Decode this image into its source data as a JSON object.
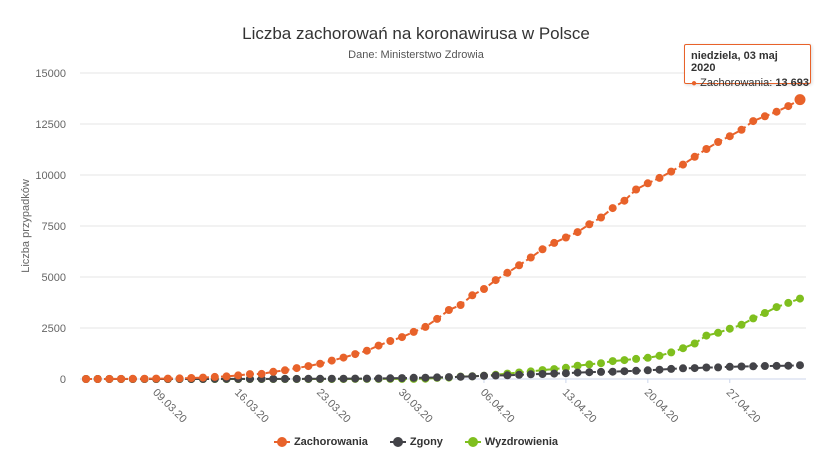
{
  "chart_data": {
    "type": "line",
    "title": "Liczba zachorowań na koronawirusa w Polsce",
    "subtitle": "Dane: Ministerstwo Zdrowia",
    "xlabel": "",
    "ylabel": "Liczba przypadków",
    "ylim": [
      0,
      15000
    ],
    "yticks": [
      "0",
      "2500",
      "5000",
      "7500",
      "10000",
      "12500",
      "15000"
    ],
    "ytick_values": [
      0,
      2500,
      5000,
      7500,
      10000,
      12500,
      15000
    ],
    "xticks": [
      "09.03.20",
      "16.03.20",
      "23.03.20",
      "30.03.20",
      "06.04.20",
      "13.04.20",
      "20.04.20",
      "27.04.20"
    ],
    "xtick_day_index": [
      6,
      13,
      20,
      27,
      34,
      41,
      48,
      55
    ],
    "x_start": "2020-03-03",
    "x_end": "2020-05-03",
    "grid": true,
    "legend_position": "bottom",
    "series": [
      {
        "name": "Zachorowania",
        "color": "#e8622a",
        "values": [
          1,
          1,
          5,
          6,
          11,
          17,
          18,
          22,
          31,
          49,
          68,
          104,
          125,
          177,
          238,
          251,
          355,
          425,
          536,
          634,
          749,
          901,
          1051,
          1221,
          1389,
          1638,
          1862,
          2055,
          2311,
          2554,
          2946,
          3383,
          3627,
          4102,
          4413,
          4848,
          5205,
          5575,
          5955,
          6356,
          6674,
          6934,
          7202,
          7582,
          7918,
          8379,
          8742,
          9287,
          9593,
          9856,
          10169,
          10511,
          10892,
          11273,
          11617,
          11902,
          12218,
          12640,
          12877,
          13105,
          13375,
          13693
        ]
      },
      {
        "name": "Zgony",
        "color": "#434348",
        "values": [
          0,
          0,
          0,
          0,
          0,
          0,
          0,
          0,
          0,
          1,
          2,
          3,
          3,
          5,
          5,
          5,
          5,
          7,
          7,
          8,
          10,
          14,
          16,
          18,
          22,
          23,
          33,
          45,
          57,
          65,
          79,
          94,
          107,
          129,
          159,
          174,
          181,
          208,
          232,
          245,
          263,
          286,
          314,
          332,
          347,
          360,
          380,
          401,
          426,
          454,
          494,
          524,
          535,
          562,
          570,
          596,
          612,
          624,
          636,
          644,
          651,
          678
        ]
      },
      {
        "name": "Wyzdrowienia",
        "color": "#7fbf1e",
        "values": [
          0,
          0,
          0,
          0,
          0,
          0,
          0,
          0,
          0,
          0,
          0,
          0,
          0,
          1,
          1,
          1,
          1,
          1,
          1,
          1,
          1,
          1,
          1,
          7,
          7,
          7,
          7,
          7,
          7,
          13,
          56,
          71,
          116,
          134,
          162,
          207,
          263,
          318,
          375,
          435,
          486,
          551,
          654,
          716,
          774,
          875,
          925,
          984,
          1040,
          1135,
          1302,
          1510,
          1740,
          2126,
          2265,
          2466,
          2655,
          2971,
          3236,
          3526,
          3732,
          3942
        ]
      }
    ],
    "tooltip": {
      "date": "niedziela, 03 maj 2020",
      "series": "Zachorowania",
      "value_label": "13 693",
      "value": 13693
    }
  }
}
